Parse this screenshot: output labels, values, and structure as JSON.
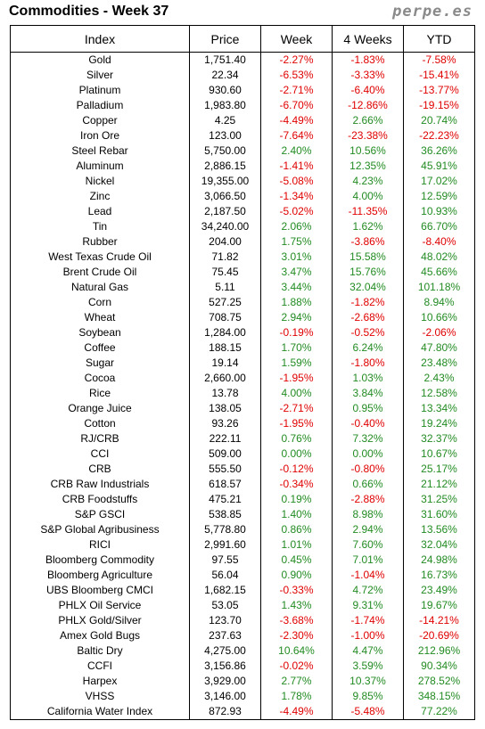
{
  "header": {
    "title": "Commodities - Week 37",
    "brand": "perpe.es"
  },
  "columns": [
    "Index",
    "Price",
    "Week",
    "4 Weeks",
    "YTD"
  ],
  "rows": [
    [
      "Gold",
      "1,751.40",
      "-2.27%",
      "-1.83%",
      "-7.58%"
    ],
    [
      "Silver",
      "22.34",
      "-6.53%",
      "-3.33%",
      "-15.41%"
    ],
    [
      "Platinum",
      "930.60",
      "-2.71%",
      "-6.40%",
      "-13.77%"
    ],
    [
      "Palladium",
      "1,983.80",
      "-6.70%",
      "-12.86%",
      "-19.15%"
    ],
    [
      "Copper",
      "4.25",
      "-4.49%",
      "2.66%",
      "20.74%"
    ],
    [
      "Iron Ore",
      "123.00",
      "-7.64%",
      "-23.38%",
      "-22.23%"
    ],
    [
      "Steel Rebar",
      "5,750.00",
      "2.40%",
      "10.56%",
      "36.26%"
    ],
    [
      "Aluminum",
      "2,886.15",
      "-1.41%",
      "12.35%",
      "45.91%"
    ],
    [
      "Nickel",
      "19,355.00",
      "-5.08%",
      "4.23%",
      "17.02%"
    ],
    [
      "Zinc",
      "3,066.50",
      "-1.34%",
      "4.00%",
      "12.59%"
    ],
    [
      "Lead",
      "2,187.50",
      "-5.02%",
      "-11.35%",
      "10.93%"
    ],
    [
      "Tin",
      "34,240.00",
      "2.06%",
      "1.62%",
      "66.70%"
    ],
    [
      "Rubber",
      "204.00",
      "1.75%",
      "-3.86%",
      "-8.40%"
    ],
    [
      "West Texas Crude Oil",
      "71.82",
      "3.01%",
      "15.58%",
      "48.02%"
    ],
    [
      "Brent Crude Oil",
      "75.45",
      "3.47%",
      "15.76%",
      "45.66%"
    ],
    [
      "Natural Gas",
      "5.11",
      "3.44%",
      "32.04%",
      "101.18%"
    ],
    [
      "Corn",
      "527.25",
      "1.88%",
      "-1.82%",
      "8.94%"
    ],
    [
      "Wheat",
      "708.75",
      "2.94%",
      "-2.68%",
      "10.66%"
    ],
    [
      "Soybean",
      "1,284.00",
      "-0.19%",
      "-0.52%",
      "-2.06%"
    ],
    [
      "Coffee",
      "188.15",
      "1.70%",
      "6.24%",
      "47.80%"
    ],
    [
      "Sugar",
      "19.14",
      "1.59%",
      "-1.80%",
      "23.48%"
    ],
    [
      "Cocoa",
      "2,660.00",
      "-1.95%",
      "1.03%",
      "2.43%"
    ],
    [
      "Rice",
      "13.78",
      "4.00%",
      "3.84%",
      "12.58%"
    ],
    [
      "Orange Juice",
      "138.05",
      "-2.71%",
      "0.95%",
      "13.34%"
    ],
    [
      "Cotton",
      "93.26",
      "-1.95%",
      "-0.40%",
      "19.24%"
    ],
    [
      "RJ/CRB",
      "222.11",
      "0.76%",
      "7.32%",
      "32.37%"
    ],
    [
      "CCI",
      "509.00",
      "0.00%",
      "0.00%",
      "10.67%"
    ],
    [
      "CRB",
      "555.50",
      "-0.12%",
      "-0.80%",
      "25.17%"
    ],
    [
      "CRB Raw Industrials",
      "618.57",
      "-0.34%",
      "0.66%",
      "21.12%"
    ],
    [
      "CRB Foodstuffs",
      "475.21",
      "0.19%",
      "-2.88%",
      "31.25%"
    ],
    [
      "S&P GSCI",
      "538.85",
      "1.40%",
      "8.98%",
      "31.60%"
    ],
    [
      "S&P Global Agribusiness",
      "5,778.80",
      "0.86%",
      "2.94%",
      "13.56%"
    ],
    [
      "RICI",
      "2,991.60",
      "1.01%",
      "7.60%",
      "32.04%"
    ],
    [
      "Bloomberg Commodity",
      "97.55",
      "0.45%",
      "7.01%",
      "24.98%"
    ],
    [
      "Bloomberg Agriculture",
      "56.04",
      "0.90%",
      "-1.04%",
      "16.73%"
    ],
    [
      "UBS Bloomberg CMCI",
      "1,682.15",
      "-0.33%",
      "4.72%",
      "23.49%"
    ],
    [
      "PHLX Oil Service",
      "53.05",
      "1.43%",
      "9.31%",
      "19.67%"
    ],
    [
      "PHLX Gold/Silver",
      "123.70",
      "-3.68%",
      "-1.74%",
      "-14.21%"
    ],
    [
      "Amex Gold Bugs",
      "237.63",
      "-2.30%",
      "-1.00%",
      "-20.69%"
    ],
    [
      "Baltic Dry",
      "4,275.00",
      "10.64%",
      "4.47%",
      "212.96%"
    ],
    [
      "CCFI",
      "3,156.86",
      "-0.02%",
      "3.59%",
      "90.34%"
    ],
    [
      "Harpex",
      "3,929.00",
      "2.77%",
      "10.37%",
      "278.52%"
    ],
    [
      "VHSS",
      "3,146.00",
      "1.78%",
      "9.85%",
      "348.15%"
    ],
    [
      "California Water Index",
      "872.93",
      "-4.49%",
      "-5.48%",
      "77.22%"
    ]
  ],
  "colors": {
    "positive": "#228b22",
    "negative": "#e00000"
  }
}
